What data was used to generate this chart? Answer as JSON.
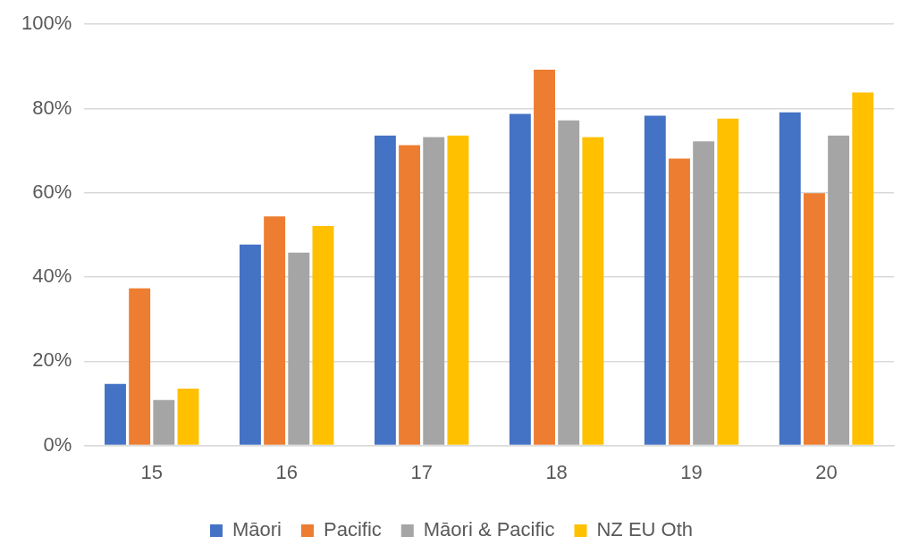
{
  "chart_data": {
    "type": "bar",
    "categories": [
      "15",
      "16",
      "17",
      "18",
      "19",
      "20"
    ],
    "series": [
      {
        "name": "Māori",
        "color": "#4472c4",
        "values": [
          14.6,
          47.7,
          73.6,
          78.7,
          78.3,
          79.1
        ]
      },
      {
        "name": "Pacific",
        "color": "#ed7d31",
        "values": [
          37.3,
          54.4,
          71.3,
          89.2,
          68.1,
          59.9
        ]
      },
      {
        "name": "Māori & Pacific",
        "color": "#a5a5a5",
        "values": [
          10.8,
          45.8,
          73.2,
          77.2,
          72.2,
          73.6
        ]
      },
      {
        "name": "NZ EU Oth",
        "color": "#ffc000",
        "values": [
          13.5,
          52.1,
          73.6,
          73.2,
          77.6,
          83.8
        ]
      }
    ],
    "ylim": [
      0,
      100
    ],
    "yticks": [
      {
        "value": 0,
        "label": "0%"
      },
      {
        "value": 20,
        "label": "20%"
      },
      {
        "value": 40,
        "label": "40%"
      },
      {
        "value": 60,
        "label": "60%"
      },
      {
        "value": 80,
        "label": "80%"
      },
      {
        "value": 100,
        "label": "100%"
      }
    ],
    "grid": "y",
    "legend": "bottom"
  }
}
